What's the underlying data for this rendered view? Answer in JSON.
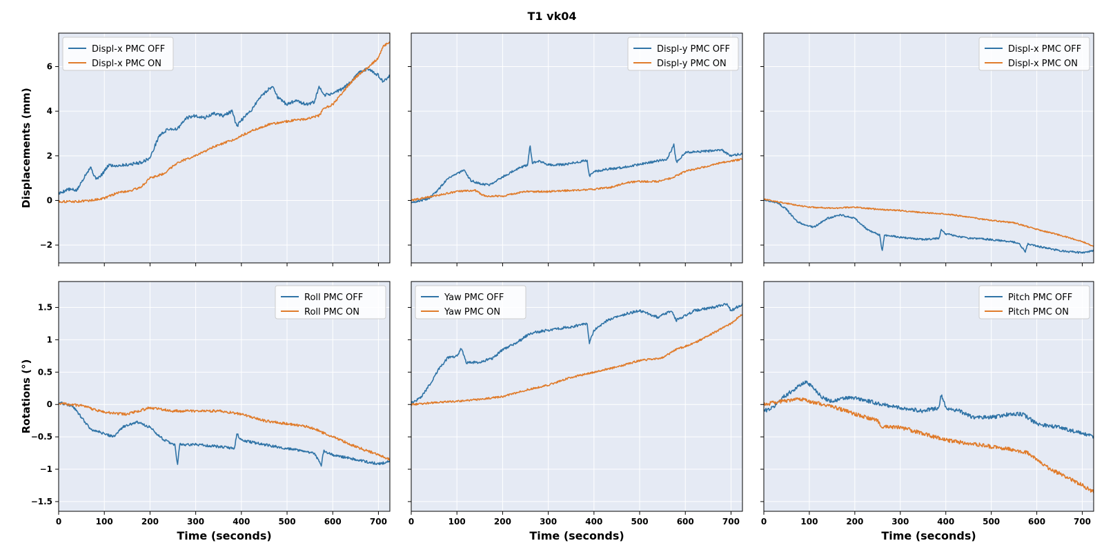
{
  "figure": {
    "title": "T1  vk04",
    "colors": {
      "off": "#2f73a6",
      "on": "#e07b2a",
      "panel_bg": "#e5eaf4",
      "grid": "#ffffff"
    }
  },
  "chart_data": [
    {
      "type": "line",
      "title": "",
      "xlabel": "",
      "ylabel": "Displacements (mm)",
      "xlim": [
        0,
        725
      ],
      "ylim": [
        -2.8,
        7.5
      ],
      "xticks": [
        0,
        100,
        200,
        300,
        400,
        500,
        600,
        700
      ],
      "yticks": [
        -2,
        0,
        2,
        4,
        6
      ],
      "show_x_ticklabels": false,
      "show_y_ticklabels": true,
      "legend": "upper-left",
      "series": [
        {
          "name": "Displ-x PMC OFF",
          "color": "#2f73a6",
          "noise": 0.07,
          "x": [
            0,
            20,
            40,
            60,
            70,
            80,
            90,
            100,
            110,
            120,
            150,
            180,
            200,
            210,
            220,
            240,
            260,
            280,
            300,
            320,
            340,
            360,
            380,
            390,
            400,
            420,
            440,
            460,
            470,
            480,
            500,
            520,
            540,
            560,
            570,
            580,
            600,
            620,
            640,
            660,
            680,
            700,
            710,
            725
          ],
          "y": [
            0.3,
            0.5,
            0.45,
            1.2,
            1.5,
            1.0,
            1.05,
            1.3,
            1.6,
            1.55,
            1.6,
            1.7,
            1.9,
            2.4,
            2.9,
            3.2,
            3.2,
            3.7,
            3.8,
            3.7,
            3.9,
            3.8,
            4.0,
            3.3,
            3.6,
            4.0,
            4.6,
            5.0,
            5.1,
            4.6,
            4.3,
            4.5,
            4.3,
            4.4,
            5.1,
            4.7,
            4.8,
            5.0,
            5.3,
            5.8,
            5.9,
            5.6,
            5.3,
            5.6
          ]
        },
        {
          "name": "Displ-x PMC ON",
          "color": "#e07b2a",
          "noise": 0.05,
          "x": [
            0,
            40,
            70,
            100,
            130,
            160,
            180,
            200,
            230,
            260,
            300,
            340,
            380,
            420,
            460,
            500,
            540,
            570,
            580,
            600,
            620,
            640,
            660,
            680,
            700,
            710,
            725
          ],
          "y": [
            -0.05,
            -0.05,
            0.0,
            0.1,
            0.35,
            0.45,
            0.6,
            1.0,
            1.2,
            1.7,
            2.0,
            2.4,
            2.7,
            3.1,
            3.4,
            3.55,
            3.65,
            3.8,
            4.1,
            4.3,
            4.8,
            5.3,
            5.7,
            6.0,
            6.4,
            6.9,
            7.1
          ]
        }
      ]
    },
    {
      "type": "line",
      "title": "",
      "xlabel": "",
      "ylabel": "",
      "xlim": [
        0,
        725
      ],
      "ylim": [
        -2.8,
        7.5
      ],
      "xticks": [
        0,
        100,
        200,
        300,
        400,
        500,
        600,
        700
      ],
      "yticks": [
        -2,
        0,
        2,
        4,
        6
      ],
      "show_x_ticklabels": false,
      "show_y_ticklabels": false,
      "legend": "upper-right",
      "series": [
        {
          "name": "Displ-y PMC OFF",
          "color": "#2f73a6",
          "noise": 0.05,
          "x": [
            0,
            40,
            60,
            80,
            100,
            115,
            130,
            150,
            170,
            200,
            230,
            255,
            260,
            265,
            280,
            300,
            330,
            360,
            385,
            390,
            400,
            430,
            470,
            520,
            560,
            575,
            580,
            600,
            640,
            680,
            700,
            725
          ],
          "y": [
            -0.1,
            0.1,
            0.5,
            1.0,
            1.2,
            1.35,
            0.9,
            0.75,
            0.7,
            1.05,
            1.4,
            1.6,
            2.5,
            1.7,
            1.75,
            1.6,
            1.6,
            1.7,
            1.8,
            1.1,
            1.3,
            1.4,
            1.5,
            1.7,
            1.85,
            2.5,
            1.7,
            2.15,
            2.2,
            2.25,
            2.0,
            2.1
          ]
        },
        {
          "name": "Displ-y PMC ON",
          "color": "#e07b2a",
          "noise": 0.04,
          "x": [
            0,
            50,
            100,
            140,
            160,
            200,
            250,
            300,
            350,
            400,
            440,
            470,
            500,
            540,
            570,
            600,
            640,
            680,
            725
          ],
          "y": [
            0.0,
            0.2,
            0.4,
            0.45,
            0.2,
            0.2,
            0.4,
            0.4,
            0.45,
            0.5,
            0.6,
            0.8,
            0.85,
            0.85,
            1.0,
            1.3,
            1.5,
            1.7,
            1.85
          ]
        }
      ]
    },
    {
      "type": "line",
      "title": "",
      "xlabel": "",
      "ylabel": "",
      "xlim": [
        0,
        725
      ],
      "ylim": [
        -2.8,
        7.5
      ],
      "xticks": [
        0,
        100,
        200,
        300,
        400,
        500,
        600,
        700
      ],
      "yticks": [
        -2,
        0,
        2,
        4,
        6
      ],
      "show_x_ticklabels": false,
      "show_y_ticklabels": false,
      "legend": "upper-right",
      "series": [
        {
          "name": "Displ-x PMC OFF",
          "color": "#2f73a6",
          "noise": 0.04,
          "x": [
            0,
            30,
            50,
            70,
            90,
            110,
            140,
            170,
            200,
            230,
            255,
            260,
            265,
            300,
            350,
            385,
            390,
            400,
            450,
            500,
            560,
            575,
            580,
            600,
            650,
            700,
            725
          ],
          "y": [
            0.05,
            -0.1,
            -0.4,
            -0.9,
            -1.1,
            -1.2,
            -0.8,
            -0.65,
            -0.8,
            -1.35,
            -1.55,
            -2.3,
            -1.55,
            -1.65,
            -1.75,
            -1.7,
            -1.3,
            -1.5,
            -1.7,
            -1.75,
            -1.9,
            -2.3,
            -1.95,
            -2.05,
            -2.25,
            -2.35,
            -2.25
          ]
        },
        {
          "name": "Displ-x PMC ON",
          "color": "#e07b2a",
          "noise": 0.03,
          "x": [
            0,
            40,
            100,
            150,
            200,
            250,
            300,
            350,
            400,
            450,
            500,
            550,
            600,
            650,
            700,
            725
          ],
          "y": [
            0.05,
            -0.1,
            -0.3,
            -0.35,
            -0.3,
            -0.4,
            -0.45,
            -0.55,
            -0.6,
            -0.75,
            -0.9,
            -1.0,
            -1.3,
            -1.55,
            -1.85,
            -2.05
          ]
        }
      ]
    },
    {
      "type": "line",
      "title": "",
      "xlabel": "Time (seconds)",
      "ylabel": "Rotations (°)",
      "xlim": [
        0,
        725
      ],
      "ylim": [
        -1.65,
        1.9
      ],
      "xticks": [
        0,
        100,
        200,
        300,
        400,
        500,
        600,
        700
      ],
      "yticks": [
        -1.5,
        -1.0,
        -0.5,
        0.0,
        0.5,
        1.0,
        1.5
      ],
      "show_x_ticklabels": true,
      "show_y_ticklabels": true,
      "legend": "upper-right",
      "series": [
        {
          "name": "Roll PMC OFF",
          "color": "#2f73a6",
          "noise": 0.02,
          "x": [
            0,
            30,
            50,
            70,
            100,
            120,
            140,
            170,
            200,
            230,
            255,
            260,
            265,
            300,
            350,
            385,
            390,
            400,
            450,
            500,
            560,
            575,
            580,
            600,
            650,
            700,
            725
          ],
          "y": [
            0.03,
            -0.02,
            -0.2,
            -0.38,
            -0.45,
            -0.5,
            -0.35,
            -0.27,
            -0.35,
            -0.55,
            -0.62,
            -0.95,
            -0.62,
            -0.62,
            -0.65,
            -0.68,
            -0.45,
            -0.55,
            -0.62,
            -0.68,
            -0.75,
            -0.95,
            -0.72,
            -0.78,
            -0.85,
            -0.92,
            -0.88
          ]
        },
        {
          "name": "Roll PMC ON",
          "color": "#e07b2a",
          "noise": 0.02,
          "x": [
            0,
            50,
            100,
            150,
            200,
            250,
            300,
            350,
            400,
            450,
            500,
            550,
            600,
            650,
            700,
            725
          ],
          "y": [
            0.02,
            -0.02,
            -0.12,
            -0.15,
            -0.05,
            -0.1,
            -0.1,
            -0.1,
            -0.15,
            -0.25,
            -0.3,
            -0.35,
            -0.5,
            -0.65,
            -0.78,
            -0.85
          ]
        }
      ]
    },
    {
      "type": "line",
      "title": "",
      "xlabel": "Time (seconds)",
      "ylabel": "",
      "xlim": [
        0,
        725
      ],
      "ylim": [
        -1.65,
        1.9
      ],
      "xticks": [
        0,
        100,
        200,
        300,
        400,
        500,
        600,
        700
      ],
      "yticks": [
        -1.5,
        -1.0,
        -0.5,
        0.0,
        0.5,
        1.0,
        1.5
      ],
      "show_x_ticklabels": true,
      "show_y_ticklabels": false,
      "legend": "upper-left",
      "series": [
        {
          "name": "Yaw PMC OFF",
          "color": "#2f73a6",
          "noise": 0.02,
          "x": [
            0,
            20,
            40,
            60,
            80,
            100,
            110,
            120,
            150,
            180,
            200,
            230,
            260,
            300,
            350,
            385,
            390,
            400,
            430,
            470,
            500,
            540,
            570,
            580,
            620,
            660,
            690,
            700,
            725
          ],
          "y": [
            0.02,
            0.1,
            0.3,
            0.55,
            0.72,
            0.75,
            0.88,
            0.65,
            0.65,
            0.72,
            0.85,
            0.95,
            1.1,
            1.15,
            1.2,
            1.25,
            0.95,
            1.15,
            1.3,
            1.4,
            1.45,
            1.35,
            1.45,
            1.3,
            1.45,
            1.5,
            1.55,
            1.45,
            1.55
          ]
        },
        {
          "name": "Yaw PMC ON",
          "color": "#e07b2a",
          "noise": 0.015,
          "x": [
            0,
            50,
            100,
            150,
            200,
            250,
            300,
            350,
            400,
            450,
            500,
            550,
            580,
            620,
            660,
            700,
            725
          ],
          "y": [
            0.0,
            0.03,
            0.05,
            0.08,
            0.12,
            0.22,
            0.3,
            0.42,
            0.5,
            0.58,
            0.68,
            0.72,
            0.85,
            0.95,
            1.1,
            1.25,
            1.4
          ]
        }
      ]
    },
    {
      "type": "line",
      "title": "",
      "xlabel": "Time (seconds)",
      "ylabel": "",
      "xlim": [
        0,
        725
      ],
      "ylim": [
        -1.65,
        1.9
      ],
      "xticks": [
        0,
        100,
        200,
        300,
        400,
        500,
        600,
        700
      ],
      "yticks": [
        -1.5,
        -1.0,
        -0.5,
        0.0,
        0.5,
        1.0,
        1.5
      ],
      "show_x_ticklabels": true,
      "show_y_ticklabels": false,
      "legend": "upper-right",
      "series": [
        {
          "name": "Pitch PMC OFF",
          "color": "#2f73a6",
          "noise": 0.03,
          "x": [
            0,
            20,
            40,
            60,
            80,
            95,
            110,
            130,
            150,
            180,
            200,
            230,
            260,
            300,
            350,
            385,
            390,
            400,
            430,
            460,
            500,
            540,
            570,
            580,
            600,
            650,
            700,
            725
          ],
          "y": [
            -0.1,
            -0.05,
            0.1,
            0.2,
            0.3,
            0.35,
            0.25,
            0.1,
            0.05,
            0.1,
            0.1,
            0.05,
            0.0,
            -0.05,
            -0.1,
            -0.05,
            0.15,
            -0.05,
            -0.1,
            -0.2,
            -0.2,
            -0.15,
            -0.15,
            -0.2,
            -0.3,
            -0.35,
            -0.45,
            -0.5
          ]
        },
        {
          "name": "Pitch PMC ON",
          "color": "#e07b2a",
          "noise": 0.03,
          "x": [
            0,
            40,
            80,
            100,
            130,
            160,
            200,
            250,
            260,
            300,
            350,
            400,
            450,
            500,
            550,
            580,
            600,
            630,
            660,
            700,
            725
          ],
          "y": [
            0.0,
            0.05,
            0.08,
            0.05,
            0.0,
            -0.05,
            -0.15,
            -0.25,
            -0.35,
            -0.35,
            -0.45,
            -0.55,
            -0.6,
            -0.65,
            -0.7,
            -0.75,
            -0.85,
            -1.0,
            -1.1,
            -1.25,
            -1.35
          ]
        }
      ]
    }
  ]
}
